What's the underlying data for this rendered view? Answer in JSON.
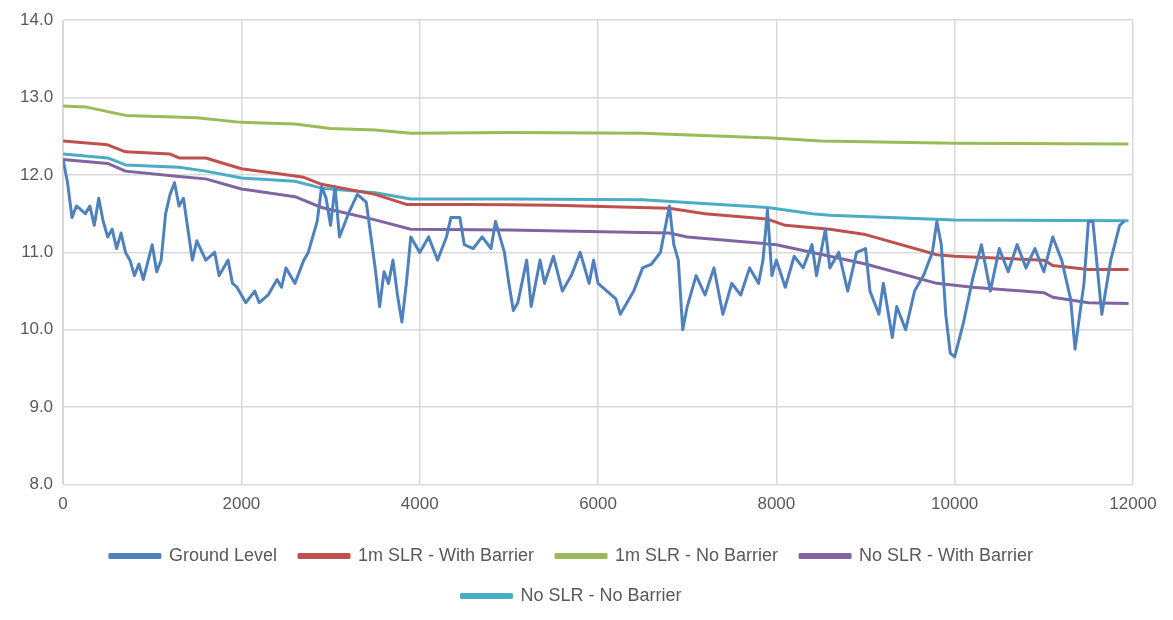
{
  "chart_data": {
    "type": "line",
    "xlim": [
      0,
      12000
    ],
    "xticks": [
      0,
      2000,
      4000,
      6000,
      8000,
      10000,
      12000
    ],
    "ylim": [
      8,
      14
    ],
    "yticks": [
      {
        "value": 8,
        "label": "8.0"
      },
      {
        "value": 9,
        "label": "9.0"
      },
      {
        "value": 10,
        "label": "10.0"
      },
      {
        "value": 11,
        "label": "11.0"
      },
      {
        "value": 12,
        "label": "12.0"
      },
      {
        "value": 13,
        "label": "13.0"
      },
      {
        "value": 14,
        "label": "14.0"
      }
    ],
    "grid": true,
    "legend": "bottom",
    "marker": "none",
    "line_style": "solid",
    "series": [
      {
        "name": "Ground Level",
        "color": "#4f81bd",
        "x": [
          0,
          50,
          100,
          150,
          250,
          300,
          350,
          400,
          450,
          500,
          550,
          600,
          650,
          700,
          750,
          800,
          850,
          900,
          1000,
          1050,
          1100,
          1150,
          1200,
          1250,
          1300,
          1350,
          1400,
          1450,
          1500,
          1600,
          1700,
          1750,
          1850,
          1900,
          1950,
          2050,
          2150,
          2200,
          2300,
          2400,
          2450,
          2500,
          2600,
          2700,
          2750,
          2850,
          2900,
          2950,
          3000,
          3050,
          3100,
          3200,
          3300,
          3400,
          3500,
          3550,
          3600,
          3650,
          3700,
          3750,
          3800,
          3850,
          3900,
          4000,
          4100,
          4200,
          4300,
          4350,
          4450,
          4500,
          4600,
          4700,
          4800,
          4850,
          4950,
          5000,
          5050,
          5100,
          5200,
          5250,
          5350,
          5400,
          5500,
          5600,
          5700,
          5800,
          5900,
          5950,
          6000,
          6100,
          6200,
          6250,
          6350,
          6400,
          6500,
          6600,
          6700,
          6750,
          6800,
          6850,
          6900,
          6950,
          7000,
          7100,
          7200,
          7300,
          7400,
          7500,
          7600,
          7700,
          7800,
          7850,
          7900,
          7950,
          8000,
          8100,
          8200,
          8300,
          8400,
          8450,
          8550,
          8600,
          8700,
          8800,
          8900,
          9000,
          9050,
          9150,
          9200,
          9300,
          9350,
          9450,
          9550,
          9650,
          9750,
          9800,
          9850,
          9900,
          9950,
          10000,
          10100,
          10200,
          10300,
          10400,
          10500,
          10600,
          10700,
          10800,
          10900,
          11000,
          11100,
          11200,
          11300,
          11350,
          11450,
          11500,
          11550,
          11650,
          11750,
          11850,
          11900
        ],
        "values": [
          12.2,
          11.9,
          11.45,
          11.6,
          11.5,
          11.6,
          11.35,
          11.7,
          11.4,
          11.2,
          11.3,
          11.05,
          11.25,
          11.0,
          10.9,
          10.7,
          10.85,
          10.65,
          11.1,
          10.75,
          10.9,
          11.5,
          11.75,
          11.9,
          11.6,
          11.7,
          11.3,
          10.9,
          11.15,
          10.9,
          11.0,
          10.7,
          10.9,
          10.6,
          10.55,
          10.35,
          10.5,
          10.35,
          10.45,
          10.65,
          10.55,
          10.8,
          10.6,
          10.9,
          11.0,
          11.4,
          11.85,
          11.7,
          11.35,
          11.85,
          11.2,
          11.5,
          11.75,
          11.65,
          10.8,
          10.3,
          10.75,
          10.6,
          10.9,
          10.45,
          10.1,
          10.6,
          11.2,
          11.0,
          11.2,
          10.9,
          11.2,
          11.45,
          11.45,
          11.1,
          11.05,
          11.2,
          11.05,
          11.4,
          11.0,
          10.6,
          10.25,
          10.35,
          10.9,
          10.3,
          10.9,
          10.6,
          10.95,
          10.5,
          10.7,
          11.0,
          10.6,
          10.9,
          10.6,
          10.5,
          10.4,
          10.2,
          10.4,
          10.5,
          10.8,
          10.85,
          11.0,
          11.3,
          11.6,
          11.1,
          10.9,
          10.0,
          10.3,
          10.7,
          10.45,
          10.8,
          10.2,
          10.6,
          10.45,
          10.8,
          10.6,
          10.9,
          11.55,
          10.7,
          10.9,
          10.55,
          10.95,
          10.8,
          11.1,
          10.7,
          11.3,
          10.8,
          11.0,
          10.5,
          11.0,
          11.05,
          10.5,
          10.2,
          10.6,
          9.9,
          10.3,
          10.0,
          10.5,
          10.7,
          11.0,
          11.4,
          11.1,
          10.2,
          9.7,
          9.65,
          10.1,
          10.65,
          11.1,
          10.5,
          11.05,
          10.75,
          11.1,
          10.8,
          11.05,
          10.75,
          11.2,
          10.9,
          10.4,
          9.75,
          10.6,
          11.4,
          11.4,
          10.2,
          10.9,
          11.35,
          11.4
        ]
      },
      {
        "name": "1m SLR - With Barrier",
        "color": "#c0504d",
        "x": [
          0,
          500,
          700,
          1200,
          1300,
          1600,
          2000,
          2400,
          2700,
          2900,
          3500,
          3850,
          4500,
          5500,
          6800,
          7200,
          7900,
          8100,
          8600,
          9000,
          9800,
          10000,
          11000,
          11100,
          11500,
          11950
        ],
        "values": [
          12.44,
          12.39,
          12.3,
          12.27,
          12.22,
          12.22,
          12.08,
          12.02,
          11.97,
          11.88,
          11.75,
          11.62,
          11.62,
          11.61,
          11.57,
          11.5,
          11.43,
          11.35,
          11.3,
          11.23,
          10.97,
          10.95,
          10.9,
          10.83,
          10.78,
          10.78
        ]
      },
      {
        "name": "1m SLR - No Barrier",
        "color": "#9bbb59",
        "x": [
          0,
          250,
          700,
          1500,
          2000,
          2600,
          3000,
          3500,
          3900,
          5000,
          6500,
          7900,
          8500,
          10000,
          11950
        ],
        "values": [
          12.89,
          12.88,
          12.77,
          12.74,
          12.68,
          12.66,
          12.6,
          12.58,
          12.54,
          12.55,
          12.54,
          12.48,
          12.44,
          12.41,
          12.4
        ]
      },
      {
        "name": "No SLR - With Barrier",
        "color": "#8064a2",
        "x": [
          0,
          500,
          700,
          1300,
          1600,
          2000,
          2600,
          2900,
          3500,
          3900,
          5000,
          6800,
          7000,
          8000,
          8600,
          9000,
          9800,
          10200,
          11000,
          11100,
          11500,
          11950
        ],
        "values": [
          12.2,
          12.15,
          12.05,
          11.98,
          11.95,
          11.82,
          11.72,
          11.58,
          11.42,
          11.3,
          11.29,
          11.25,
          11.2,
          11.1,
          10.95,
          10.85,
          10.6,
          10.55,
          10.48,
          10.42,
          10.35,
          10.34
        ]
      },
      {
        "name": "No SLR - No Barrier",
        "color": "#4bacc6",
        "x": [
          0,
          500,
          700,
          1300,
          1600,
          2000,
          2600,
          2900,
          3500,
          3900,
          5000,
          6500,
          7900,
          8400,
          8600,
          10000,
          11950
        ],
        "values": [
          12.27,
          12.22,
          12.13,
          12.1,
          12.05,
          11.96,
          11.92,
          11.83,
          11.77,
          11.69,
          11.69,
          11.68,
          11.58,
          11.5,
          11.48,
          11.42,
          11.41
        ]
      }
    ]
  }
}
